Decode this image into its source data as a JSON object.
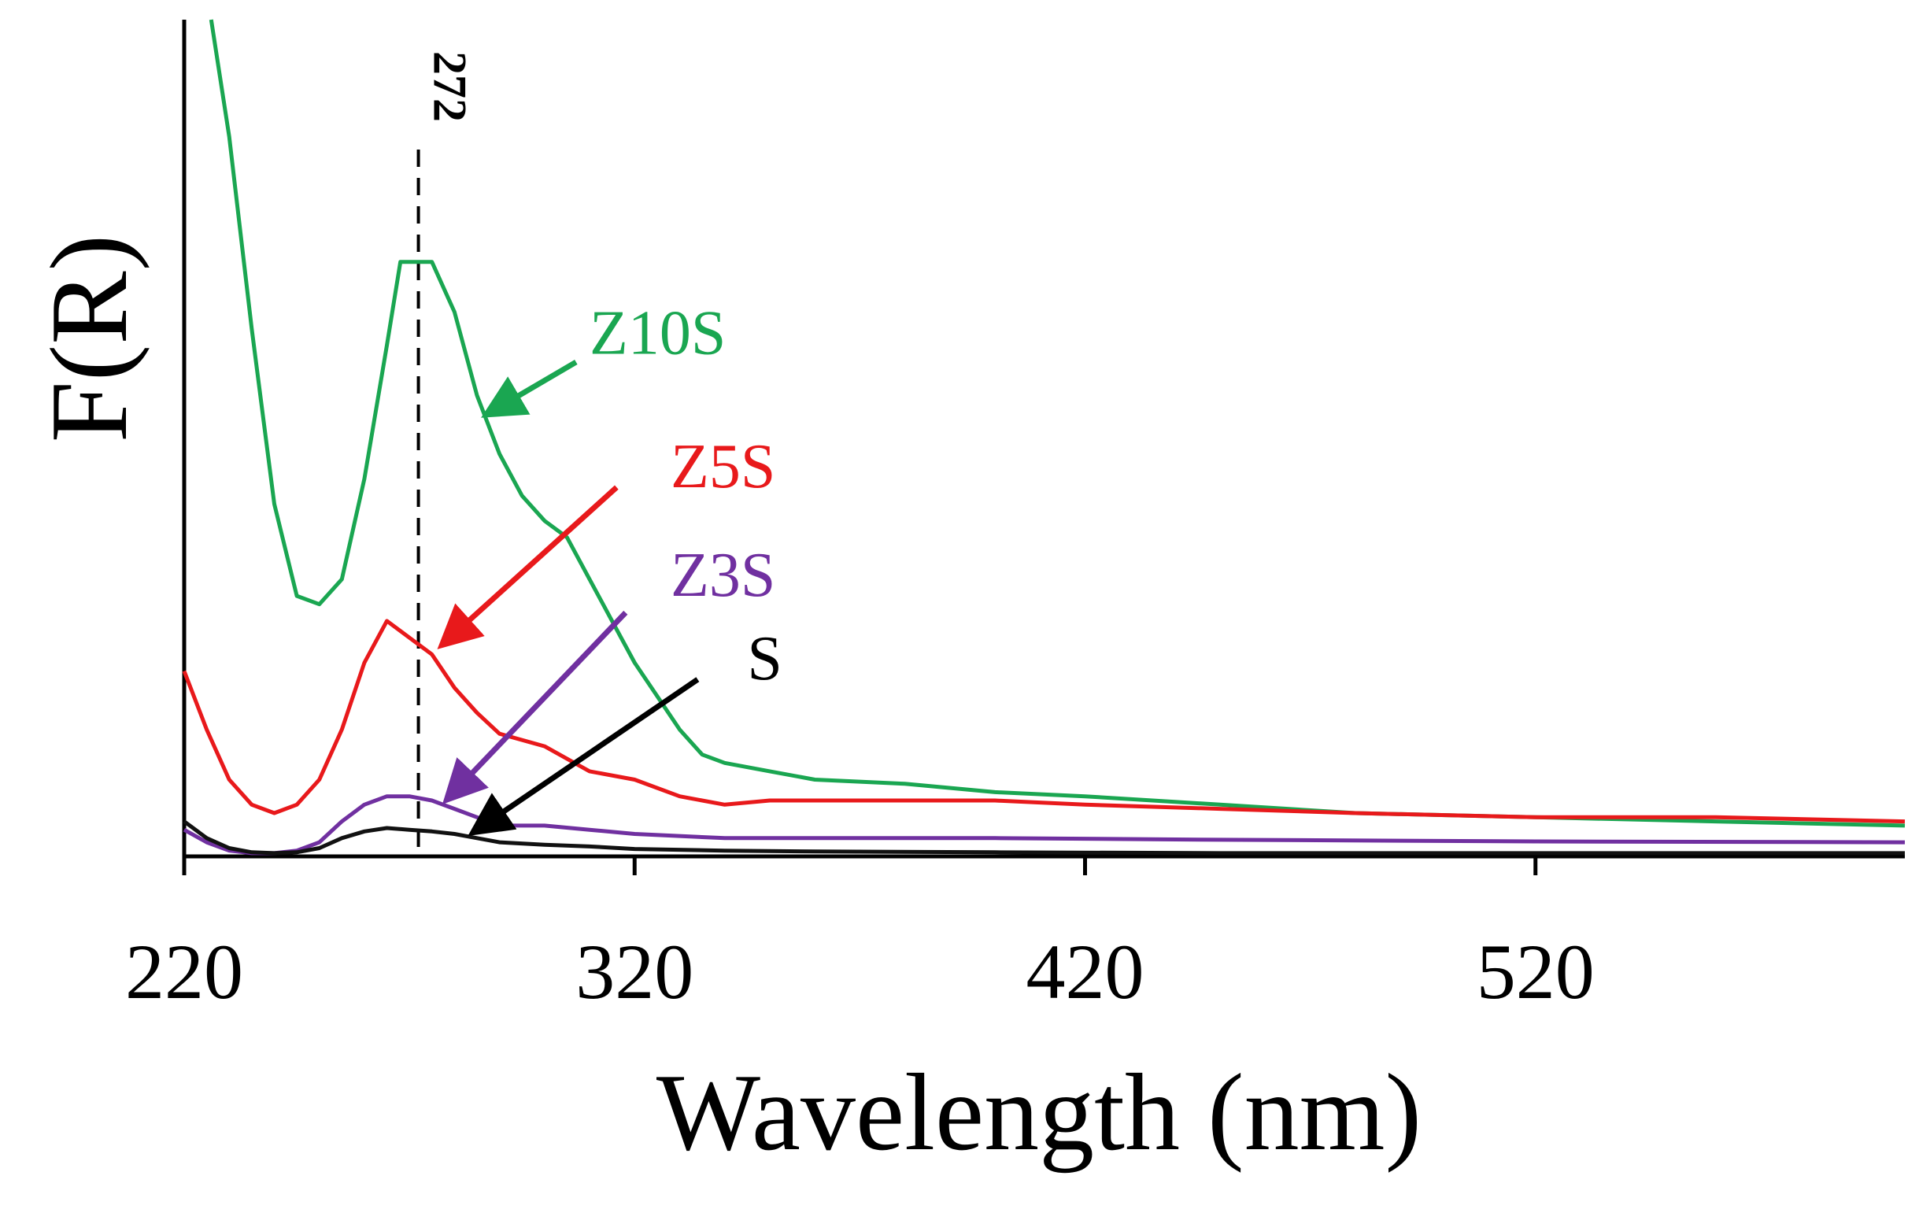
{
  "chart_data": {
    "type": "line",
    "title": "",
    "xlabel": "Wavelength (nm)",
    "ylabel": "F(R)",
    "xlim": [
      220,
      602
    ],
    "ylim": [
      0,
      100
    ],
    "xticks": [
      220,
      320,
      420,
      520
    ],
    "grid": false,
    "annotation": {
      "x": 272,
      "label": "272",
      "style": "dashed-vertical"
    },
    "series": [
      {
        "name": "Z10S",
        "color": "#1aa651",
        "x": [
          226,
          230,
          235,
          240,
          245,
          250,
          255,
          260,
          265,
          268,
          272,
          275,
          280,
          285,
          290,
          295,
          300,
          305,
          310,
          315,
          320,
          325,
          330,
          335,
          340,
          350,
          360,
          380,
          400,
          420,
          450,
          480,
          520,
          560,
          602
        ],
        "values": [
          100,
          86,
          63,
          42,
          31,
          30,
          33,
          45,
          61,
          71,
          71,
          71,
          65,
          55,
          48,
          43,
          40,
          38,
          33,
          28,
          23,
          19,
          15,
          12,
          11,
          10,
          9,
          8.5,
          7.5,
          7,
          6,
          5,
          4.5,
          4,
          3.5
        ]
      },
      {
        "name": "Z5S",
        "color": "#e8191b",
        "x": [
          220,
          225,
          230,
          235,
          240,
          245,
          250,
          255,
          260,
          265,
          270,
          275,
          280,
          285,
          290,
          300,
          310,
          320,
          330,
          340,
          350,
          360,
          380,
          400,
          420,
          450,
          480,
          520,
          560,
          602
        ],
        "values": [
          22,
          15,
          9,
          6,
          5,
          6,
          9,
          15,
          23,
          28,
          26,
          24,
          20,
          17,
          14.5,
          13,
          10,
          9,
          7,
          6,
          6.5,
          6.5,
          6.5,
          6.5,
          6,
          5.5,
          5,
          4.5,
          4.5,
          4
        ]
      },
      {
        "name": "Z3S",
        "color": "#7030a0",
        "x": [
          220,
          225,
          230,
          235,
          240,
          245,
          250,
          255,
          260,
          265,
          270,
          275,
          280,
          285,
          290,
          300,
          310,
          320,
          340,
          360,
          400,
          450,
          520,
          602
        ],
        "values": [
          3,
          1.5,
          0.5,
          0.2,
          0.2,
          0.5,
          1.5,
          4,
          6,
          7,
          7,
          6.5,
          5.5,
          4.5,
          3.5,
          3.5,
          3,
          2.5,
          2,
          2,
          2,
          1.8,
          1.6,
          1.5
        ]
      },
      {
        "name": "S",
        "color": "#111111",
        "x": [
          220,
          225,
          230,
          235,
          240,
          245,
          250,
          255,
          260,
          265,
          270,
          275,
          280,
          285,
          290,
          300,
          310,
          320,
          340,
          360,
          400,
          450,
          520,
          602
        ],
        "values": [
          4,
          2,
          0.8,
          0.3,
          0.2,
          0.3,
          0.8,
          2,
          2.8,
          3.2,
          3,
          2.8,
          2.5,
          2,
          1.5,
          1.2,
          1,
          0.7,
          0.5,
          0.4,
          0.3,
          0.2,
          0.2,
          0.2
        ]
      }
    ],
    "labels": [
      {
        "series": "Z10S",
        "text": "Z10S",
        "color": "#1aa651",
        "pos": [
          310,
          60
        ],
        "arrow_to": [
          288,
          53
        ]
      },
      {
        "series": "Z5S",
        "text": "Z5S",
        "color": "#e8191b",
        "pos": [
          328,
          44
        ],
        "arrow_from": [
          316,
          44
        ],
        "arrow_to": [
          278,
          25.5
        ]
      },
      {
        "series": "Z3S",
        "text": "Z3S",
        "color": "#7030a0",
        "pos": [
          328,
          31
        ],
        "arrow_from": [
          318,
          29
        ],
        "arrow_to": [
          279,
          7
        ]
      },
      {
        "series": "S",
        "text": "S",
        "color": "#000000",
        "pos": [
          345,
          21
        ],
        "arrow_from": [
          334,
          21
        ],
        "arrow_to": [
          285,
          3
        ]
      }
    ]
  }
}
